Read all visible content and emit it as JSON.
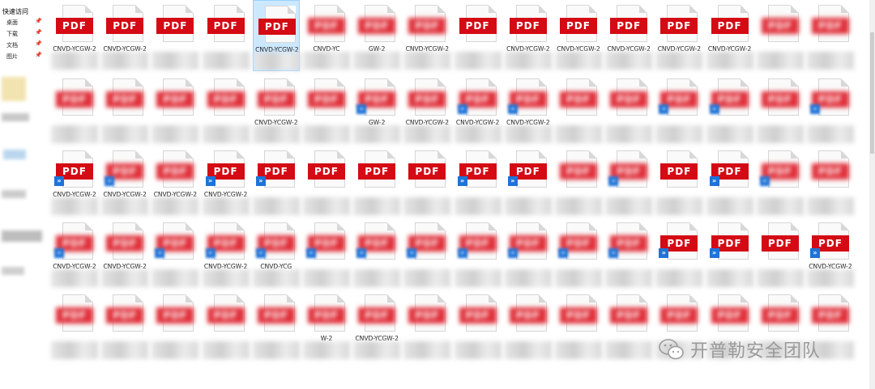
{
  "sidebar": {
    "title": "快速访问",
    "items": [
      {
        "label": "桌面"
      },
      {
        "label": "下载"
      },
      {
        "label": "文档"
      },
      {
        "label": "图片"
      }
    ]
  },
  "files": [
    {
      "name": "CNVD-YCGW-2",
      "icon": "pdf",
      "clear": true
    },
    {
      "name": "CNVD-YCGW-2",
      "icon": "pdf",
      "clear": true
    },
    {
      "name": "",
      "icon": "pdf",
      "clear": true
    },
    {
      "name": "",
      "icon": "pdf",
      "clear": true
    },
    {
      "name": "CNVD-YCGW-2",
      "icon": "pdf",
      "clear": true,
      "selected": true
    },
    {
      "name": "CNVD-YC",
      "icon": "pdf",
      "clear": false
    },
    {
      "name": "GW-2",
      "icon": "pdf",
      "clear": false
    },
    {
      "name": "CNVD-YCGW-2",
      "icon": "pdf",
      "clear": false
    },
    {
      "name": "",
      "icon": "pdf",
      "clear": true
    },
    {
      "name": "CNVD-YCGW-2",
      "icon": "pdf",
      "clear": true
    },
    {
      "name": "CNVD-YCGW-2",
      "icon": "pdf",
      "clear": true
    },
    {
      "name": "CNVD-YCGW-2",
      "icon": "pdf",
      "clear": true
    },
    {
      "name": "CNVD-YCGW-2",
      "icon": "pdf",
      "clear": true
    },
    {
      "name": "CNVD-YCGW-2",
      "icon": "pdf",
      "clear": true
    },
    {
      "name": "",
      "icon": "pdf",
      "clear": false
    },
    {
      "name": "",
      "icon": "pdf",
      "clear": false
    },
    {
      "name": "",
      "icon": "pdf",
      "clear": false
    },
    {
      "name": "",
      "icon": "pdf",
      "clear": false
    },
    {
      "name": "",
      "icon": "pdf",
      "clear": false
    },
    {
      "name": "",
      "icon": "pdf",
      "clear": false
    },
    {
      "name": "CNVD-YCGW-2",
      "icon": "pdf",
      "clear": false
    },
    {
      "name": "",
      "icon": "pdf",
      "clear": false
    },
    {
      "name": "GW-2",
      "icon": "pdf",
      "clear": false,
      "shortcut": true
    },
    {
      "name": "CNVD-YCGW-2",
      "icon": "pdf",
      "clear": false
    },
    {
      "name": "CNVD-YCGW-2",
      "icon": "pdf",
      "clear": false,
      "shortcut": true
    },
    {
      "name": "CNVD-YCGW-2",
      "icon": "pdf",
      "clear": false,
      "shortcut": true
    },
    {
      "name": "",
      "icon": "pdf",
      "clear": false
    },
    {
      "name": "",
      "icon": "pdf",
      "clear": false
    },
    {
      "name": "",
      "icon": "pdf",
      "clear": false,
      "shortcut": true
    },
    {
      "name": "",
      "icon": "pdf",
      "clear": false,
      "shortcut": true
    },
    {
      "name": "",
      "icon": "pdf",
      "clear": false
    },
    {
      "name": "",
      "icon": "pdf",
      "clear": false,
      "shortcut": true
    },
    {
      "name": "CNVD-YCGW-2",
      "icon": "pdf",
      "clear": true,
      "shortcut": true
    },
    {
      "name": "CNVD-YCGW-2",
      "icon": "pdf",
      "clear": false,
      "shortcut": true
    },
    {
      "name": "CNVD-YCGW-2",
      "icon": "pdf",
      "clear": false
    },
    {
      "name": "CNVD-YCGW-2",
      "icon": "pdf",
      "clear": true,
      "shortcut": true
    },
    {
      "name": "",
      "icon": "pdf",
      "clear": true,
      "shortcut": true
    },
    {
      "name": "",
      "icon": "pdf",
      "clear": true
    },
    {
      "name": "",
      "icon": "pdf",
      "clear": true
    },
    {
      "name": "",
      "icon": "pdf",
      "clear": true
    },
    {
      "name": "",
      "icon": "pdf",
      "clear": true,
      "shortcut": true
    },
    {
      "name": "",
      "icon": "pdf",
      "clear": true,
      "shortcut": true
    },
    {
      "name": "",
      "icon": "pdf",
      "clear": false
    },
    {
      "name": "",
      "icon": "pdf",
      "clear": false,
      "shortcut": true
    },
    {
      "name": "",
      "icon": "pdf",
      "clear": true
    },
    {
      "name": "",
      "icon": "pdf",
      "clear": true,
      "shortcut": true
    },
    {
      "name": "",
      "icon": "pdf",
      "clear": false,
      "shortcut": true
    },
    {
      "name": "",
      "icon": "pdf",
      "clear": false
    },
    {
      "name": "CNVD-YCGW-2",
      "icon": "pdf",
      "clear": false,
      "shortcut": true
    },
    {
      "name": "CNVD-YCGW-2",
      "icon": "pdf",
      "clear": false
    },
    {
      "name": "",
      "icon": "pdf",
      "clear": false,
      "shortcut": true
    },
    {
      "name": "CNVD-YCGW-2",
      "icon": "pdf",
      "clear": false,
      "shortcut": true
    },
    {
      "name": "CNVD-YCG",
      "icon": "pdf",
      "clear": false,
      "shortcut": true
    },
    {
      "name": "",
      "icon": "pdf",
      "clear": false,
      "shortcut": true
    },
    {
      "name": "",
      "icon": "pdf",
      "clear": false,
      "shortcut": true
    },
    {
      "name": "",
      "icon": "pdf",
      "clear": false,
      "shortcut": true
    },
    {
      "name": "",
      "icon": "pdf",
      "clear": false,
      "shortcut": true
    },
    {
      "name": "",
      "icon": "pdf",
      "clear": false,
      "shortcut": true
    },
    {
      "name": "",
      "icon": "pdf",
      "clear": false,
      "shortcut": true
    },
    {
      "name": "",
      "icon": "pdf",
      "clear": false,
      "shortcut": true
    },
    {
      "name": "",
      "icon": "pdf",
      "clear": true,
      "shortcut": true
    },
    {
      "name": "",
      "icon": "pdf",
      "clear": true,
      "shortcut": true
    },
    {
      "name": "",
      "icon": "pdf",
      "clear": true
    },
    {
      "name": "CNVD-YCGW-2",
      "icon": "pdf",
      "clear": true,
      "shortcut": true
    },
    {
      "name": "",
      "icon": "pdf",
      "clear": false
    },
    {
      "name": "",
      "icon": "pdf",
      "clear": false
    },
    {
      "name": "",
      "icon": "pdf",
      "clear": false
    },
    {
      "name": "",
      "icon": "pdf",
      "clear": false
    },
    {
      "name": "",
      "icon": "pdf",
      "clear": false
    },
    {
      "name": "W-2",
      "icon": "pdf",
      "clear": false
    },
    {
      "name": "CNVD-YCGW-2",
      "icon": "pdf",
      "clear": false
    },
    {
      "name": "",
      "icon": "pdf",
      "clear": false
    },
    {
      "name": "",
      "icon": "pdf",
      "clear": false
    },
    {
      "name": "",
      "icon": "pdf",
      "clear": false
    },
    {
      "name": "",
      "icon": "pdf",
      "clear": false
    },
    {
      "name": "",
      "icon": "pdf",
      "clear": false
    },
    {
      "name": "",
      "icon": "pdf",
      "clear": false
    },
    {
      "name": "",
      "icon": "pdf",
      "clear": false
    },
    {
      "name": "",
      "icon": "pdf",
      "clear": false
    },
    {
      "name": "",
      "icon": "pdf",
      "clear": false
    }
  ],
  "pdf_label": "PDF",
  "shortcut_glyph": "»",
  "watermark": {
    "text": "开普勒安全团队",
    "icon": "wechat-icon"
  },
  "colors": {
    "pdf_red": "#d40a14",
    "select_bg": "#cce8ff",
    "shortcut_blue": "#1e73d8"
  }
}
